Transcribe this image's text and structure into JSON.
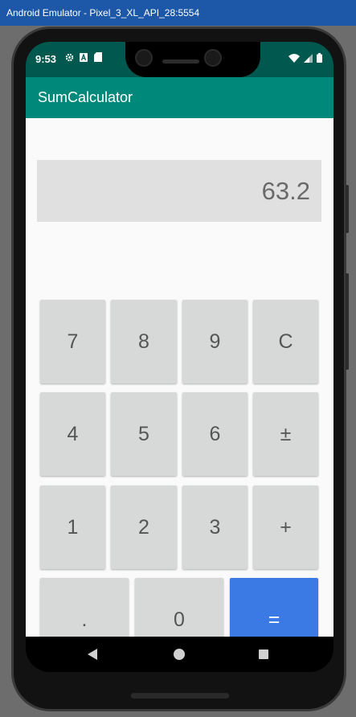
{
  "window": {
    "title": "Android Emulator - Pixel_3_XL_API_28:5554"
  },
  "status_bar": {
    "time": "9:53",
    "left_icons": [
      "gear-icon",
      "font-a-icon",
      "sd-card-icon"
    ],
    "right_icons": [
      "wifi-icon",
      "signal-icon",
      "battery-icon"
    ]
  },
  "app": {
    "title": "SumCalculator"
  },
  "display": {
    "value": "63.2"
  },
  "keypad": {
    "row1": [
      "7",
      "8",
      "9",
      "C"
    ],
    "row2": [
      "4",
      "5",
      "6",
      "±"
    ],
    "row3": [
      "1",
      "2",
      "3",
      "+"
    ],
    "row4": [
      ".",
      "0",
      "="
    ]
  },
  "colors": {
    "status_bar": "#00584e",
    "app_bar": "#00897b",
    "key": "#d7d9d9",
    "equals_key": "#3b79e5",
    "display": "#e0e0e0"
  },
  "nav": {
    "buttons": [
      "back-icon",
      "home-icon",
      "recents-icon"
    ]
  }
}
